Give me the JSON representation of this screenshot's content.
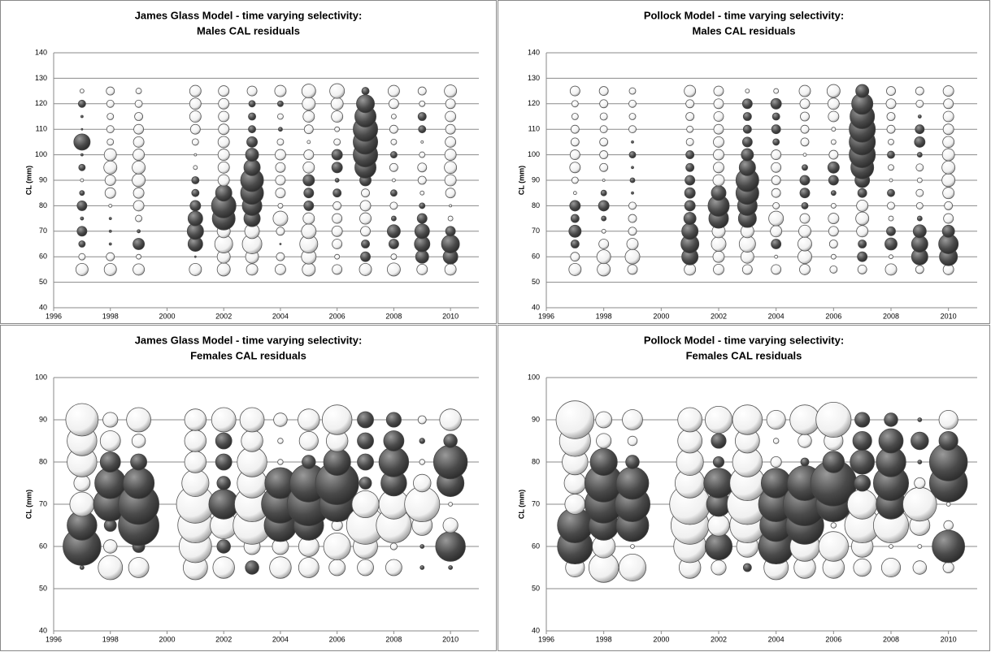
{
  "chart_data": [
    {
      "type": "bubble",
      "title": "James Glass Model - time varying selectivity:",
      "subtitle": "Males CAL residuals",
      "ylabel": "CL (mm)",
      "x": [
        1997,
        1998,
        1999,
        2001,
        2002,
        2003,
        2004,
        2005,
        2006,
        2007,
        2008,
        2009,
        2010
      ],
      "y": [
        55,
        60,
        65,
        70,
        75,
        80,
        85,
        90,
        95,
        100,
        105,
        110,
        115,
        120,
        125
      ],
      "values": [
        [
          -1.5,
          -0.8,
          0.8,
          1.2,
          0.4,
          1.2,
          0.6,
          -0.4,
          0.8,
          0.3,
          2.0,
          0.2,
          0.3,
          0.9,
          -0.5
        ],
        [
          -1.5,
          -1,
          0.3,
          0.3,
          0.3,
          -0.4,
          -1.3,
          -1.3,
          -1.6,
          -1.5,
          -0.8,
          -0.9,
          -0.8,
          -0.9,
          -1
        ],
        [
          -1.4,
          -0.6,
          1.4,
          0.4,
          -0.8,
          -1.3,
          -1.3,
          -1.6,
          -1.6,
          -1.4,
          -1.3,
          -1.2,
          -1,
          -0.9,
          -0.7
        ],
        [
          -1.5,
          0.2,
          1.8,
          2,
          1.8,
          1.3,
          0.9,
          0.9,
          -0.5,
          -0.3,
          -0.8,
          -1.2,
          -1.4,
          -1.4,
          -1.4
        ],
        [
          -1.6,
          -1.6,
          -2.2,
          -1.6,
          2.8,
          3,
          2,
          -1.4,
          -1.4,
          -1.4,
          -1.4,
          -1.3,
          -1.3,
          -1.3,
          -1.3
        ],
        [
          -1.4,
          -1.6,
          -2.4,
          -1.8,
          2,
          2.4,
          2.8,
          2.8,
          2,
          1.6,
          1.3,
          0.9,
          0.9,
          0.8,
          -1.2
        ],
        [
          -1.3,
          -1,
          0.2,
          -1,
          -1.8,
          -0.6,
          -1.2,
          -1.2,
          -1.2,
          -1.3,
          -0.8,
          0.5,
          -0.7,
          0.7,
          -1.4
        ],
        [
          -1.6,
          -1.8,
          -2.2,
          -1.8,
          -1.4,
          1.2,
          1.2,
          1.4,
          -1.4,
          -1.2,
          -0.4,
          -1.1,
          -1.4,
          -1.6,
          -1.7
        ],
        [
          -1.2,
          -0.6,
          -1.2,
          -1.3,
          -1.2,
          -1,
          1,
          0.5,
          1.3,
          1.3,
          -0.8,
          -0.6,
          -1.4,
          -1.5,
          -1.8
        ],
        [
          -1.5,
          1.2,
          1,
          -1.2,
          -1.4,
          -1.3,
          -1,
          1.4,
          2.6,
          3,
          3,
          3,
          2.6,
          2.2,
          0.9
        ],
        [
          -1.6,
          -0.7,
          1.2,
          1.6,
          0.6,
          -0.9,
          0.8,
          -0.4,
          -1,
          0.8,
          -0.7,
          -1,
          -0.6,
          -1.2,
          -1.4
        ],
        [
          -1.3,
          1.6,
          1.9,
          1.8,
          1.2,
          0.7,
          -0.5,
          -1,
          -1.1,
          -0.7,
          -0.3,
          0.9,
          1,
          -0.7,
          -1
        ],
        [
          -1.4,
          1.8,
          2.2,
          1.2,
          -0.6,
          -0.3,
          -1.2,
          -1.4,
          -1.5,
          -1.4,
          -1.3,
          -1.2,
          -1.3,
          -1.2,
          -1.5
        ]
      ],
      "positive_color": "#444444",
      "negative_color": "#ffffff",
      "xlim": [
        1996,
        2011
      ],
      "xticks": [
        1996,
        1998,
        2000,
        2002,
        2004,
        2006,
        2008,
        2010
      ],
      "ylim": [
        40,
        140
      ],
      "yticks": [
        40,
        50,
        60,
        70,
        80,
        90,
        100,
        110,
        120,
        130,
        140
      ],
      "grid": true
    },
    {
      "type": "bubble",
      "title": "Pollock Model - time varying selectivity:",
      "subtitle": "Males CAL residuals",
      "ylabel": "CL (mm)",
      "x": [
        1997,
        1998,
        1999,
        2001,
        2002,
        2003,
        2004,
        2005,
        2006,
        2007,
        2008,
        2009,
        2010
      ],
      "y": [
        55,
        60,
        65,
        70,
        75,
        80,
        85,
        90,
        95,
        100,
        105,
        110,
        115,
        120,
        125
      ],
      "values": [
        [
          -1.5,
          -1.1,
          1,
          1.5,
          1,
          1.3,
          -0.4,
          -0.8,
          -1.3,
          -1.2,
          -1,
          -1,
          -0.8,
          -0.8,
          -1.2
        ],
        [
          -1.6,
          -1.7,
          -1.2,
          -0.5,
          0.6,
          1.3,
          0.7,
          -0.3,
          -1,
          -1,
          -1,
          -0.9,
          -0.9,
          -1,
          -1.1
        ],
        [
          -1.2,
          -1.8,
          -1.4,
          -1,
          -1,
          -0.9,
          0.3,
          0.6,
          0.3,
          0.8,
          0.3,
          -0.9,
          -0.8,
          -0.9,
          -0.8
        ],
        [
          -1.4,
          2,
          2.2,
          2,
          1.5,
          1.3,
          1.3,
          1.2,
          1,
          1,
          -0.9,
          -0.8,
          -1,
          -1,
          -1.4
        ],
        [
          -1.3,
          -1.4,
          -1.8,
          -1.6,
          2.4,
          2.6,
          1.8,
          -1.4,
          -1.3,
          -1.3,
          -1.3,
          -1.2,
          -1.2,
          -1.2,
          -1.2
        ],
        [
          -1.2,
          -1.6,
          -2,
          -1.6,
          2.2,
          2.4,
          2.8,
          2.8,
          2,
          1.5,
          1.2,
          1,
          1,
          1.2,
          -0.5
        ],
        [
          -1.2,
          -0.4,
          1.2,
          -1.4,
          -1.8,
          -0.8,
          -1.1,
          -1.1,
          -1.2,
          -1.2,
          0.8,
          1.1,
          0.9,
          1.3,
          -0.6
        ],
        [
          -1.3,
          -1.7,
          -1.7,
          -1.5,
          -1.2,
          0.8,
          1.2,
          1.2,
          0.7,
          -0.4,
          -1,
          -1,
          -1.1,
          -1.2,
          -1.4
        ],
        [
          -0.9,
          -0.6,
          -1,
          -1.2,
          -1.3,
          -0.6,
          0.6,
          1.2,
          1.4,
          -1.1,
          -0.6,
          -0.5,
          -1.3,
          -1.4,
          -1.6
        ],
        [
          -1.1,
          1.2,
          1,
          -1.4,
          -1.6,
          -1.4,
          1.1,
          1.8,
          2.8,
          3.2,
          3.2,
          3.2,
          3,
          2.6,
          1.6
        ],
        [
          -1.4,
          -0.5,
          1.5,
          1.1,
          -0.6,
          -0.9,
          0.9,
          -0.4,
          -0.7,
          0.9,
          -0.7,
          -1,
          -1,
          -1.2,
          -1.1
        ],
        [
          -1,
          2,
          2,
          1.6,
          0.6,
          -0.8,
          -0.9,
          -0.6,
          -0.9,
          0.6,
          1.3,
          1.1,
          0.4,
          -0.9,
          -1
        ],
        [
          -1.3,
          2.2,
          2.4,
          1.5,
          -1.2,
          -1,
          -1.4,
          -1.6,
          -1.6,
          -1.5,
          -1.4,
          -1.3,
          -1.3,
          -1.2,
          -1.3
        ]
      ],
      "positive_color": "#444444",
      "negative_color": "#ffffff",
      "xlim": [
        1996,
        2011
      ],
      "xticks": [
        1996,
        1998,
        2000,
        2002,
        2004,
        2006,
        2008,
        2010
      ],
      "ylim": [
        40,
        140
      ],
      "yticks": [
        40,
        50,
        60,
        70,
        80,
        90,
        100,
        110,
        120,
        130,
        140
      ],
      "grid": true
    },
    {
      "type": "bubble",
      "title": "James Glass Model - time varying selectivity:",
      "subtitle": "Females CAL residuals",
      "ylabel": "CL (mm)",
      "x": [
        1997,
        1998,
        1999,
        2001,
        2002,
        2003,
        2004,
        2005,
        2006,
        2007,
        2008,
        2009,
        2010
      ],
      "y": [
        55,
        60,
        65,
        70,
        75,
        80,
        85,
        90
      ],
      "values": [
        [
          0.3,
          2.8,
          2.2,
          -1.8,
          -1.2,
          -2.2,
          -2.2,
          -2.4
        ],
        [
          -1.8,
          -1,
          0.9,
          2.5,
          2.3,
          1.5,
          -1.5,
          -1.1
        ],
        [
          -1.5,
          0.9,
          3,
          3,
          2.3,
          1.2,
          -1,
          -1.8
        ],
        [
          -1.8,
          -2.4,
          -2.6,
          -2.8,
          -2,
          -1.6,
          -1.6,
          -1.6
        ],
        [
          -1.6,
          1,
          -2,
          2.2,
          1,
          1.2,
          1.2,
          -1.8
        ],
        [
          1,
          -1.2,
          -2.8,
          -2.6,
          -2.2,
          -2.2,
          -1.6,
          -1.8
        ],
        [
          -1.6,
          -1.2,
          2.4,
          2.8,
          2.3,
          -0.4,
          -0.4,
          -1
        ],
        [
          -1.5,
          -1.5,
          2.2,
          3.2,
          2.8,
          1,
          -1.4,
          -1.6
        ],
        [
          -1.2,
          -2,
          -0.8,
          2.6,
          3.2,
          2,
          -1.6,
          -2.2
        ],
        [
          -1.2,
          -1.8,
          -2.8,
          -2,
          0.9,
          1.2,
          1.2,
          1.2
        ],
        [
          -1.2,
          -0.5,
          -2.6,
          -2.2,
          1.9,
          2.2,
          1.5,
          1.1
        ],
        [
          0.3,
          0.3,
          -1.5,
          -2.6,
          -1.3,
          -0.4,
          0.4,
          -0.6
        ],
        [
          0.3,
          2.2,
          -1.1,
          -0.3,
          2,
          2.5,
          1,
          -1.6
        ]
      ],
      "positive_color": "#444444",
      "negative_color": "#ffffff",
      "xlim": [
        1996,
        2011
      ],
      "xticks": [
        1996,
        1998,
        2000,
        2002,
        2004,
        2006,
        2008,
        2010
      ],
      "ylim": [
        40,
        100
      ],
      "yticks": [
        40,
        50,
        60,
        70,
        80,
        90,
        100
      ],
      "grid": true
    },
    {
      "type": "bubble",
      "title": "Pollock Model - time varying selectivity:",
      "subtitle": "Females CAL residuals",
      "ylabel": "CL (mm)",
      "x": [
        1997,
        1998,
        1999,
        2001,
        2002,
        2003,
        2004,
        2005,
        2006,
        2007,
        2008,
        2009,
        2010
      ],
      "y": [
        55,
        60,
        65,
        70,
        75,
        80,
        85,
        90
      ],
      "values": [
        [
          -1.4,
          2.6,
          2.6,
          -1.5,
          -1.6,
          -1.9,
          -2.3,
          -2.8
        ],
        [
          -2.2,
          -1.7,
          2.2,
          2.8,
          2.8,
          2,
          -1.1,
          -1.2
        ],
        [
          -2,
          -0.3,
          2.4,
          2.6,
          2.4,
          1,
          -0.7,
          -1.5
        ],
        [
          -1.6,
          -2.4,
          -2.8,
          -3,
          -2.2,
          -2,
          -1.8,
          -1.8
        ],
        [
          -1.1,
          2,
          -1.6,
          1.8,
          2.2,
          0.8,
          1.1,
          -2
        ],
        [
          0.6,
          -1.6,
          -2.6,
          -3,
          -2.6,
          -2.2,
          -1.8,
          -2.2
        ],
        [
          -1.8,
          2.6,
          2.4,
          2.6,
          2.2,
          -0.8,
          -0.4,
          -1.4
        ],
        [
          -1.6,
          -2.2,
          2.8,
          3.2,
          2.6,
          0.6,
          -1,
          -2.2
        ],
        [
          -1.6,
          -2.2,
          -0.4,
          2.6,
          3.4,
          1.6,
          -1.4,
          -2.6
        ],
        [
          -1.3,
          -1.6,
          -2.6,
          -2.2,
          1.2,
          1.8,
          1.4,
          1.1
        ],
        [
          -1.4,
          -0.3,
          -2.6,
          2.2,
          2.6,
          2.2,
          1.8,
          1
        ],
        [
          -1,
          -0.3,
          -1.5,
          -2.5,
          -0.8,
          0.3,
          1.3,
          0.3
        ],
        [
          -0.8,
          2.4,
          -0.7,
          -0.3,
          2.8,
          2.8,
          1.4,
          -1.4
        ]
      ],
      "positive_color": "#444444",
      "negative_color": "#ffffff",
      "xlim": [
        1996,
        2011
      ],
      "xticks": [
        1996,
        1998,
        2000,
        2002,
        2004,
        2006,
        2008,
        2010
      ],
      "ylim": [
        40,
        100
      ],
      "yticks": [
        40,
        50,
        60,
        70,
        80,
        90,
        100
      ],
      "grid": true
    }
  ]
}
